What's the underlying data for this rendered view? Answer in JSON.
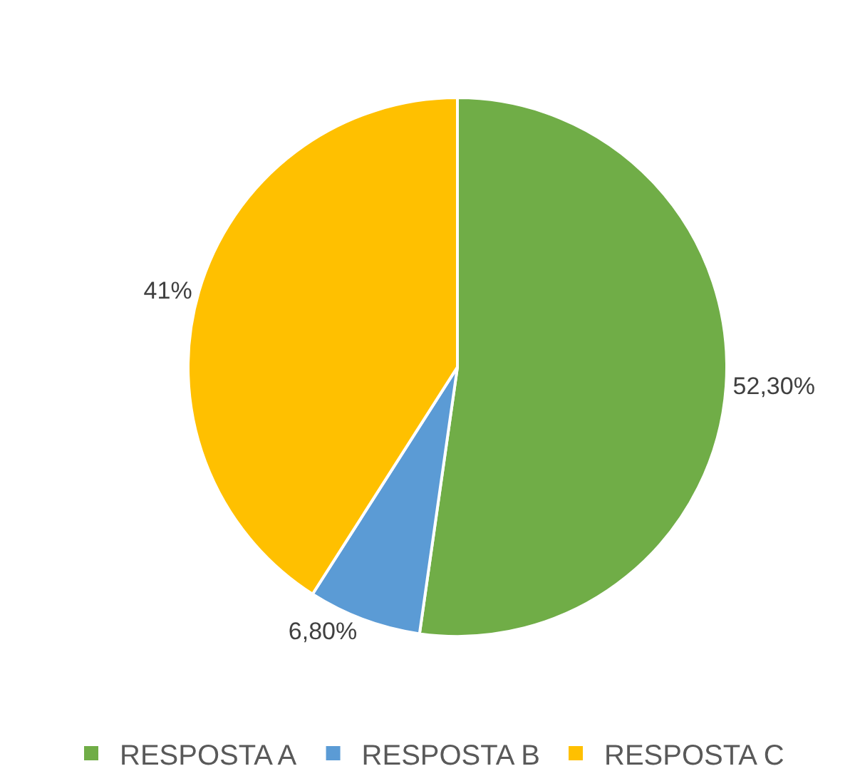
{
  "chart_data": {
    "type": "pie",
    "categories": [
      "RESPOSTA A",
      "RESPOSTA B",
      "RESPOSTA C"
    ],
    "values": [
      52.3,
      6.8,
      41
    ],
    "value_labels": [
      "52,30%",
      "6,80%",
      "41%"
    ],
    "colors": [
      "#70ad47",
      "#5b9bd5",
      "#ffc000"
    ],
    "legend": "bottom"
  }
}
